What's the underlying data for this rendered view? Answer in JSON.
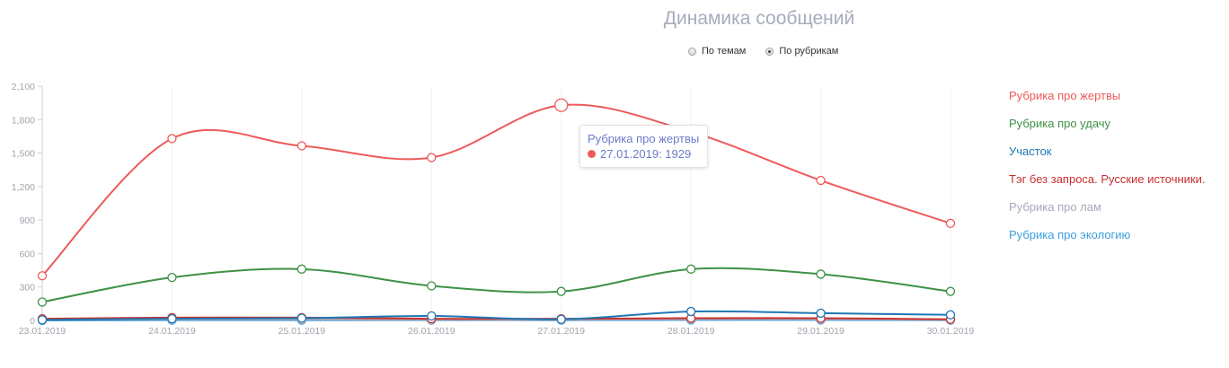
{
  "header": {
    "title": "Динамика сообщений",
    "radio_options": [
      {
        "label": "По темам",
        "checked": false
      },
      {
        "label": "По рубрикам",
        "checked": true
      }
    ]
  },
  "chart_data": {
    "type": "line",
    "x": [
      "23.01.2019",
      "24.01.2019",
      "25.01.2019",
      "26.01.2019",
      "27.01.2019",
      "28.01.2019",
      "29.01.2019",
      "30.01.2019"
    ],
    "y_ticks": [
      "0",
      "300",
      "600",
      "900",
      "1,200",
      "1,500",
      "1,800",
      "2,100"
    ],
    "ylim": [
      0,
      2100
    ],
    "legend_position": "right",
    "series": [
      {
        "name": "Рубрика про жертвы",
        "color": "#ee5a5a",
        "values": [
          400,
          1630,
          1565,
          1460,
          1929,
          1690,
          1255,
          870
        ]
      },
      {
        "name": "Рубрика про удачу",
        "color": "#3e9146",
        "values": [
          165,
          385,
          460,
          310,
          260,
          460,
          415,
          260
        ]
      },
      {
        "name": "Участок",
        "color": "#1f77b4",
        "values": [
          5,
          15,
          20,
          40,
          10,
          80,
          65,
          50
        ]
      },
      {
        "name": "Тэг без запроса. Русские источники.",
        "color": "#c8302e",
        "values": [
          15,
          25,
          25,
          15,
          15,
          20,
          20,
          10
        ]
      },
      {
        "name": "Рубрика про лам",
        "color": "#a8a8b8",
        "values": [
          5,
          8,
          8,
          5,
          5,
          10,
          10,
          5
        ]
      },
      {
        "name": "Рубрика про экологию",
        "color": "#3a9fe0",
        "values": [
          0,
          2,
          2,
          2,
          2,
          4,
          4,
          2
        ]
      }
    ]
  },
  "tooltip": {
    "series": "Рубрика про жертвы",
    "text": "27.01.2019: 1929",
    "color": "#ee5a5a",
    "index": 4
  }
}
